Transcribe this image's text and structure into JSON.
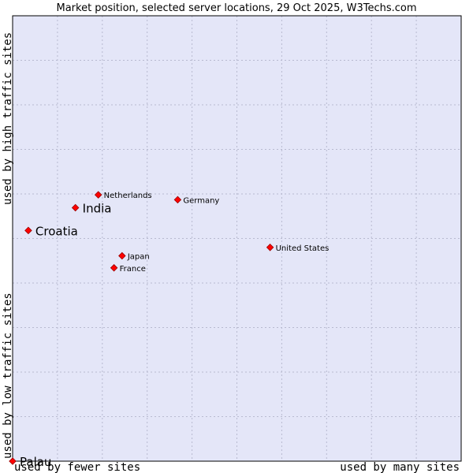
{
  "chart_data": {
    "type": "scatter",
    "title": "Market position, selected server locations, 29 Oct 2025, W3Techs.com",
    "xlabel_left": "used by fewer sites",
    "xlabel_right": "used by many sites",
    "ylabel_top": "used by high traffic sites",
    "ylabel_bottom": "used by low traffic sites",
    "xlim": [
      0,
      100
    ],
    "ylim": [
      0,
      100
    ],
    "grid": true,
    "colors": {
      "plot_background": "#e4e6f8",
      "grid": "#b8bad0",
      "point": "#ff0000",
      "point_stroke": "#990000",
      "frame": "#000000"
    },
    "points": [
      {
        "label": "Netherlands",
        "x": 19.1,
        "y": 59.8,
        "size": "small"
      },
      {
        "label": "Germany",
        "x": 36.8,
        "y": 58.7,
        "size": "small"
      },
      {
        "label": "India",
        "x": 14.0,
        "y": 56.9,
        "size": "large"
      },
      {
        "label": "Croatia",
        "x": 3.5,
        "y": 51.8,
        "size": "large"
      },
      {
        "label": "United States",
        "x": 57.4,
        "y": 48.0,
        "size": "small"
      },
      {
        "label": "Japan",
        "x": 24.4,
        "y": 46.1,
        "size": "small"
      },
      {
        "label": "France",
        "x": 22.6,
        "y": 43.4,
        "size": "small"
      },
      {
        "label": "Palau",
        "x": 0.0,
        "y": 0.0,
        "size": "large"
      }
    ]
  }
}
